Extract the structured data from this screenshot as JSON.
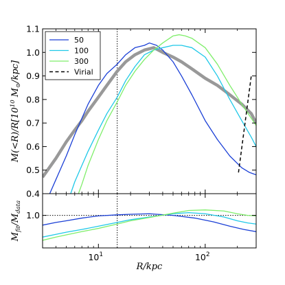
{
  "chart_data": [
    {
      "type": "line",
      "panel": "top",
      "ylabel": "M(<R)/R[10^10 M_⊙/kpc]",
      "xscale": "log",
      "xlim": [
        3,
        300
      ],
      "ylim": [
        0.4,
        1.1
      ],
      "yticks": [
        "0.4",
        "0.5",
        "0.6",
        "0.7",
        "0.8",
        "0.9",
        "1.0",
        "1.1"
      ],
      "legend_position": "top-left",
      "vertical_line_x": 15,
      "series": [
        {
          "name": "",
          "color": "#999999",
          "style": "thick-solid",
          "x": [
            3,
            4,
            5,
            6,
            7,
            8,
            10,
            12,
            15,
            18,
            22,
            27,
            33,
            40,
            50,
            60,
            75,
            100,
            130,
            170,
            220,
            270,
            300
          ],
          "y": [
            0.47,
            0.55,
            0.62,
            0.67,
            0.71,
            0.75,
            0.81,
            0.86,
            0.92,
            0.96,
            0.99,
            1.01,
            1.02,
            1.0,
            0.98,
            0.96,
            0.93,
            0.89,
            0.86,
            0.82,
            0.78,
            0.74,
            0.7
          ]
        },
        {
          "name": "50",
          "color": "#1a3fd6",
          "style": "solid",
          "x": [
            3.5,
            4,
            5,
            6,
            7,
            8,
            10,
            12,
            15,
            18,
            22,
            27,
            30,
            35,
            40,
            50,
            60,
            75,
            100,
            130,
            170,
            220,
            260,
            300
          ],
          "y": [
            0.4,
            0.46,
            0.56,
            0.65,
            0.72,
            0.78,
            0.86,
            0.91,
            0.95,
            0.99,
            1.02,
            1.03,
            1.04,
            1.03,
            1.01,
            0.96,
            0.9,
            0.82,
            0.71,
            0.63,
            0.56,
            0.51,
            0.49,
            0.48
          ]
        },
        {
          "name": "100",
          "color": "#1ec8e8",
          "style": "solid",
          "x": [
            5.5,
            6,
            7,
            8,
            10,
            12,
            15,
            18,
            22,
            27,
            33,
            40,
            50,
            60,
            75,
            100,
            130,
            170,
            220,
            270,
            300
          ],
          "y": [
            0.4,
            0.45,
            0.52,
            0.58,
            0.67,
            0.74,
            0.81,
            0.88,
            0.94,
            0.99,
            1.01,
            1.02,
            1.03,
            1.03,
            1.02,
            0.98,
            0.9,
            0.8,
            0.71,
            0.64,
            0.6
          ]
        },
        {
          "name": "300",
          "color": "#7fee6a",
          "style": "solid",
          "x": [
            6.5,
            7,
            8,
            10,
            12,
            15,
            18,
            22,
            27,
            33,
            40,
            50,
            57,
            65,
            75,
            100,
            130,
            170,
            220,
            270,
            300
          ],
          "y": [
            0.4,
            0.44,
            0.52,
            0.63,
            0.71,
            0.79,
            0.86,
            0.92,
            0.97,
            1.01,
            1.04,
            1.07,
            1.075,
            1.07,
            1.06,
            1.02,
            0.95,
            0.86,
            0.78,
            0.72,
            0.69
          ]
        },
        {
          "name": "Virial",
          "color": "#000000",
          "style": "dashed",
          "x": [
            205,
            270
          ],
          "y": [
            0.49,
            0.9
          ]
        }
      ]
    },
    {
      "type": "line",
      "panel": "bottom",
      "xlabel": "R/kpc",
      "ylabel": "M_fit/M_data",
      "xscale": "log",
      "xlim": [
        3,
        300
      ],
      "ylim": [
        0.4,
        1.4
      ],
      "yticks": [
        "1.0"
      ],
      "xticks": [
        10,
        100
      ],
      "xtick_labels": [
        "10^1",
        "10^2"
      ],
      "horizontal_line_y": 1.0,
      "vertical_line_x": 15,
      "series": [
        {
          "name": "50",
          "color": "#1a3fd6",
          "x": [
            3,
            4,
            5,
            7,
            10,
            15,
            20,
            30,
            50,
            80,
            120,
            170,
            230,
            300
          ],
          "y": [
            0.82,
            0.87,
            0.9,
            0.95,
            0.99,
            1.01,
            1.02,
            1.03,
            1.0,
            0.95,
            0.88,
            0.8,
            0.74,
            0.7
          ]
        },
        {
          "name": "100",
          "color": "#1ec8e8",
          "x": [
            3,
            4,
            5,
            7,
            10,
            15,
            20,
            30,
            50,
            70,
            100,
            150,
            200,
            250,
            300
          ],
          "y": [
            0.6,
            0.65,
            0.69,
            0.74,
            0.8,
            0.87,
            0.92,
            0.97,
            1.03,
            1.05,
            1.03,
            0.97,
            0.9,
            0.86,
            0.84
          ]
        },
        {
          "name": "300",
          "color": "#7fee6a",
          "x": [
            3,
            4,
            5,
            7,
            10,
            15,
            20,
            30,
            50,
            70,
            100,
            150,
            200,
            250,
            300
          ],
          "y": [
            0.54,
            0.6,
            0.64,
            0.7,
            0.76,
            0.84,
            0.9,
            0.96,
            1.04,
            1.09,
            1.1,
            1.08,
            1.03,
            1.0,
            0.99
          ]
        }
      ]
    }
  ]
}
